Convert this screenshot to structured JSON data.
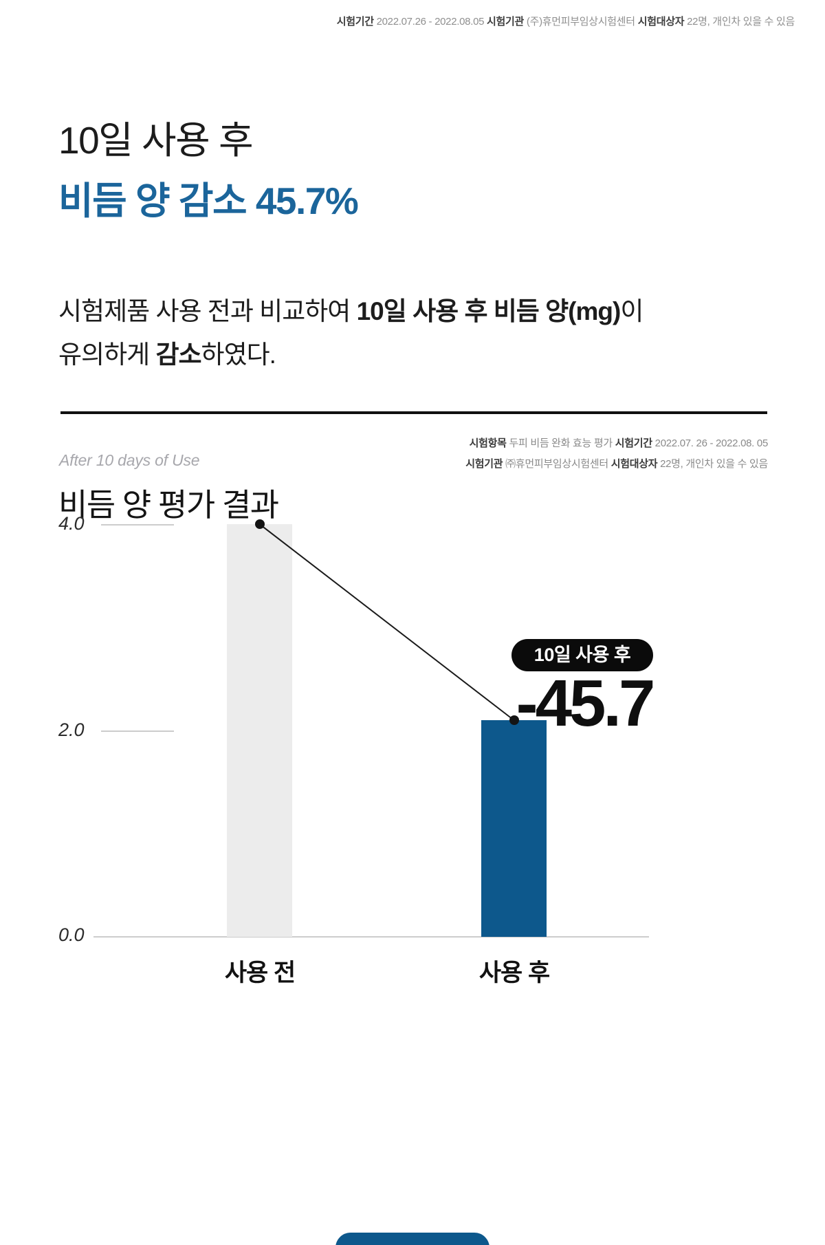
{
  "colors": {
    "accent_blue": "#1b659b",
    "bar_blue": "#0d588c",
    "bar_gray": "#ececec",
    "badge_bg": "#0b0b0b",
    "grid_gray": "#cccccc"
  },
  "header_meta": {
    "period_label": "시험기간",
    "period_value": " 2022.07.26 - 2022.08.05 ",
    "org_label": "시험기관",
    "org_value": " (주)휴먼피부임상시험센터 ",
    "subject_label": "시험대상자",
    "subject_value": " 22명, 개인차 있을 수 있음"
  },
  "hero": {
    "title_line1": "10일 사용 후",
    "title_line2": "비듬 양 감소 45.7%",
    "body_line1_normal": "시험제품 사용 전과 비교하여 ",
    "body_line1_bold": "10일 사용 후 비듬 양(mg)",
    "body_line1_tail": "이",
    "body_line2_normal": "유의하게 ",
    "body_line2_bold": "감소",
    "body_line2_tail": "하였다."
  },
  "test_info": {
    "item_label": "시험항목",
    "item_value": " 두피 비듬 완화 효능 평가 ",
    "period_label": "시험기간",
    "period_value": " 2022.07. 26 - 2022.08. 05",
    "org_label": "시험기관",
    "org_value": " ㈜휴먼피부임상시험센터 ",
    "subject_label": "시험대상자",
    "subject_value": " 22명, 개인차 있을 수 있음"
  },
  "section": {
    "eyebrow": "After 10 days of Use",
    "title": "비듬 양 평가 결과"
  },
  "chart_data": {
    "type": "bar",
    "title": "비듬 양 평가 결과",
    "categories": [
      "사용 전",
      "사용 후"
    ],
    "values": [
      4.0,
      2.1
    ],
    "ylim": [
      0,
      4.0
    ],
    "ytick_labels": [
      "4.0",
      "2.0",
      "0.0"
    ],
    "xlabel": "",
    "ylabel": "",
    "grid": "short left tick stubs at 4.0 and 2.0, full baseline at 0.0",
    "legend": "none",
    "bar_colors": [
      "#ececec",
      "#0d588c"
    ],
    "annotation": {
      "badge": "10일 사용 후",
      "value_label": "-45.7",
      "connector": "thin line between bar-top dot markers"
    }
  }
}
